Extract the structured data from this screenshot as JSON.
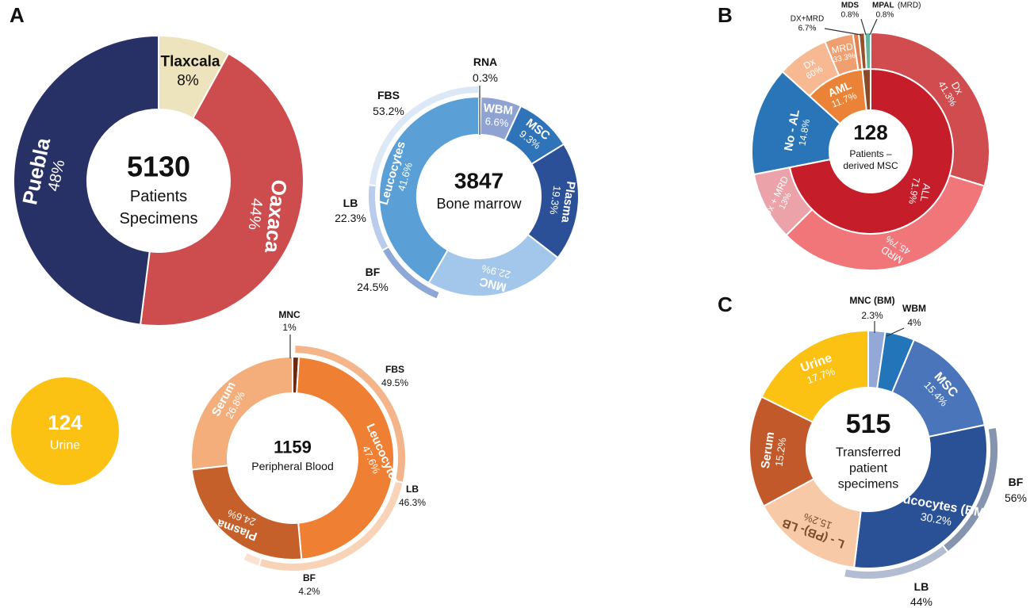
{
  "panels": {
    "a": "A",
    "b": "B",
    "c": "C"
  },
  "chart_data": [
    {
      "type": "pie",
      "id": "specimens",
      "title": "5130",
      "subtitle": [
        "Patients",
        "Specimens"
      ],
      "slices": [
        {
          "name": "Tlaxcala",
          "pct_label": "8%",
          "value": 8,
          "color": "#ede3bd"
        },
        {
          "name": "Oaxaca",
          "pct_label": "44%",
          "value": 44,
          "color": "#cd4c4e"
        },
        {
          "name": "Puebla",
          "pct_label": "48%",
          "value": 48,
          "color": "#283165"
        }
      ]
    },
    {
      "type": "pie",
      "id": "urine",
      "title": "124",
      "subtitle": "Urine",
      "color": "#fbc113"
    },
    {
      "type": "pie",
      "id": "bone-marrow",
      "title": "3847",
      "subtitle": "Bone marrow",
      "slices": [
        {
          "name": "RNA",
          "pct_label": "0.3%",
          "value": 0.3,
          "color": "#1f3f8a"
        },
        {
          "name": "WBM",
          "pct_label": "6.6%",
          "value": 6.6,
          "color": "#8fa3d3"
        },
        {
          "name": "MSC",
          "pct_label": "9.3%",
          "value": 9.3,
          "color": "#2f74b9"
        },
        {
          "name": "Plasma",
          "pct_label": "19.3%",
          "value": 19.3,
          "color": "#2c5097"
        },
        {
          "name": "MNC",
          "pct_label": "22.9%",
          "value": 22.9,
          "color": "#a3c7ea"
        },
        {
          "name": "Leucocytes",
          "pct_label": "41.6%",
          "value": 41.6,
          "color": "#5a9fd5"
        }
      ],
      "outer_ring": [
        {
          "name": "BF",
          "pct_label": "24.5%",
          "value": 24.5,
          "color": "#8da7d6"
        },
        {
          "name": "LB",
          "pct_label": "22.3%",
          "value": 22.3,
          "color": "#b9cceb"
        },
        {
          "name": "FBS",
          "pct_label": "53.2%",
          "value": 53.2,
          "color": "#dde8f7"
        }
      ]
    },
    {
      "type": "pie",
      "id": "peripheral-blood",
      "title": "1159",
      "subtitle": "Peripheral Blood",
      "slices": [
        {
          "name": "MNC",
          "pct_label": "1%",
          "value": 1,
          "color": "#6a2a12"
        },
        {
          "name": "Leucocytes",
          "pct_label": "47.6%",
          "value": 47.6,
          "color": "#ee7f33"
        },
        {
          "name": "Plasma",
          "pct_label": "24.6%",
          "value": 24.6,
          "color": "#c6602b"
        },
        {
          "name": "Serum",
          "pct_label": "26.8%",
          "value": 26.8,
          "color": "#f3ae7c"
        }
      ],
      "outer_ring": [
        {
          "name": "FBS",
          "pct_label": "49.5%",
          "value": 49.5,
          "color": "#f4b58a"
        },
        {
          "name": "LB",
          "pct_label": "46.3%",
          "value": 46.3,
          "color": "#f8d3b7"
        },
        {
          "name": "BF",
          "pct_label": "4.2%",
          "value": 4.2,
          "color": "#fbe2d0"
        }
      ]
    },
    {
      "type": "pie",
      "id": "msc",
      "title": "128",
      "subtitle": [
        "Patients –",
        "derived MSC"
      ],
      "inner_ring": [
        {
          "name": "ALL",
          "pct_label": "71.9%",
          "value": 71.9,
          "color": "#c51d29"
        },
        {
          "name": "No - AL",
          "pct_label": "14.8%",
          "value": 14.8,
          "color": "#2975b8"
        },
        {
          "name": "AML",
          "pct_label": "11.7%",
          "value": 11.7,
          "color": "#ea8237"
        },
        {
          "name": "MDS/MPAL",
          "value": 1.6,
          "color": "#8a4a2a"
        }
      ],
      "outer_ring": [
        {
          "name": "Dx",
          "pct_label": "41.3%",
          "value": 41.3,
          "color": "#d04c4e"
        },
        {
          "name": "MRD",
          "pct_label": "45.7%",
          "value": 45.7,
          "color": "#f07679"
        },
        {
          "name": "Dx + MRD",
          "pct_label": "13%",
          "value": 13,
          "color": "#eba3a9"
        },
        {
          "name": "No-AL",
          "value": 14.8,
          "color": "#2975b8"
        },
        {
          "name": "Dx",
          "pct_label": "60%",
          "value": 60,
          "color": "#f6b991"
        },
        {
          "name": "MRD",
          "pct_label": "33.3%",
          "value": 33.3,
          "color": "#f0a070"
        },
        {
          "name": "DX+MRD",
          "pct_label": "6.7%",
          "value": 6.7,
          "color": "#e07f4b"
        },
        {
          "name": "MDS",
          "pct_label": "0.8%",
          "value": 0.8,
          "color": "#9a4f2c"
        },
        {
          "name": "MPAL",
          "pct_label": "0.8%",
          "value": 0.8,
          "color": "#62b49d"
        }
      ],
      "labels": {
        "mds": "MDS",
        "mds_pct": "0.8%",
        "mpal": "MPAL",
        "mpal_note": "(MRD)",
        "mpal_pct": "0.8%",
        "dxmrd": "DX+MRD",
        "dxmrd_pct": "6.7%"
      }
    },
    {
      "type": "pie",
      "id": "transferred",
      "title": "515",
      "subtitle": [
        "Transferred",
        "patient",
        "specimens"
      ],
      "slices": [
        {
          "name": "MNC (BM)",
          "pct_label": "2.3%",
          "value": 2.3,
          "color": "#93a8d6"
        },
        {
          "name": "WBM",
          "pct_label": "4%",
          "value": 4,
          "color": "#2175b8"
        },
        {
          "name": "MSC",
          "pct_label": "15.4%",
          "value": 15.4,
          "color": "#4a75bb"
        },
        {
          "name": "Leucocytes (BM)",
          "pct_label": "30.2%",
          "value": 30.2,
          "color": "#2a5196"
        },
        {
          "name": "L - (PB)- LB",
          "pct_label": "15.2%",
          "value": 15.2,
          "color": "#f8c9a7"
        },
        {
          "name": "Serum",
          "pct_label": "15.2%",
          "value": 15.2,
          "color": "#c2592a"
        },
        {
          "name": "Urine",
          "pct_label": "17.7%",
          "value": 17.7,
          "color": "#fbc113"
        }
      ],
      "outer_ring": [
        {
          "name": "BF",
          "pct_label": "56%",
          "value": 56,
          "color": "#8594af"
        },
        {
          "name": "LB",
          "pct_label": "44%",
          "value": 44,
          "color": "#b2bdd1"
        }
      ]
    }
  ]
}
